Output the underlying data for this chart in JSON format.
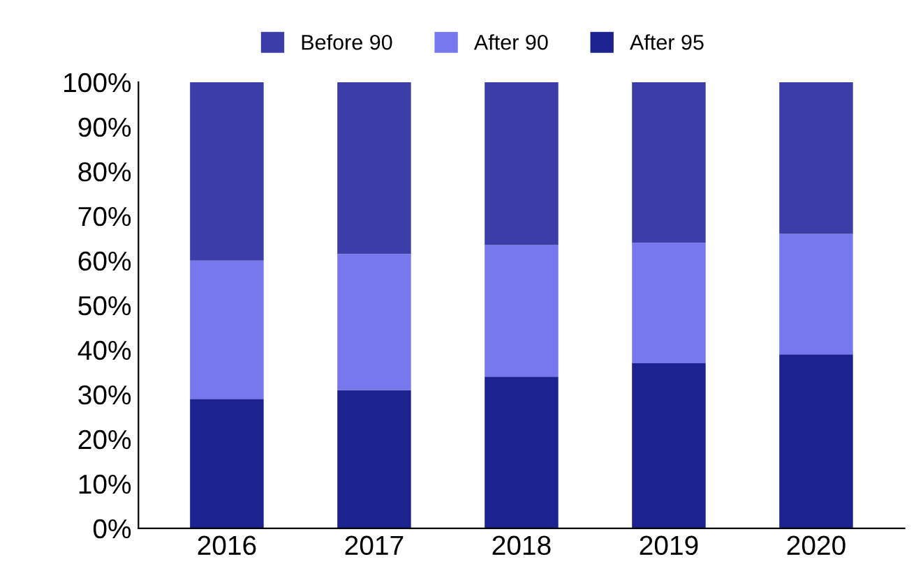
{
  "chart_data": {
    "type": "bar",
    "stacked": true,
    "categories": [
      "2016",
      "2017",
      "2018",
      "2019",
      "2020"
    ],
    "series": [
      {
        "name": "After 95",
        "color": "#1c2390",
        "values": [
          29,
          31,
          34,
          37,
          39
        ]
      },
      {
        "name": "After 90",
        "color": "#7878ee",
        "values": [
          31,
          30.5,
          29.5,
          27,
          27
        ]
      },
      {
        "name": "Before 90",
        "color": "#3d3daa",
        "values": [
          40,
          38.5,
          36.5,
          36,
          34
        ]
      }
    ],
    "ylim": [
      0,
      100
    ],
    "yticks": [
      {
        "value": 0,
        "label": "0%"
      },
      {
        "value": 10,
        "label": "10%"
      },
      {
        "value": 20,
        "label": "20%"
      },
      {
        "value": 30,
        "label": "30%"
      },
      {
        "value": 40,
        "label": "40%"
      },
      {
        "value": 50,
        "label": "50%"
      },
      {
        "value": 60,
        "label": "60%"
      },
      {
        "value": 70,
        "label": "70%"
      },
      {
        "value": 80,
        "label": "80%"
      },
      {
        "value": 90,
        "label": "90%"
      },
      {
        "value": 100,
        "label": "100%"
      }
    ],
    "grid": false,
    "legend": "top"
  }
}
